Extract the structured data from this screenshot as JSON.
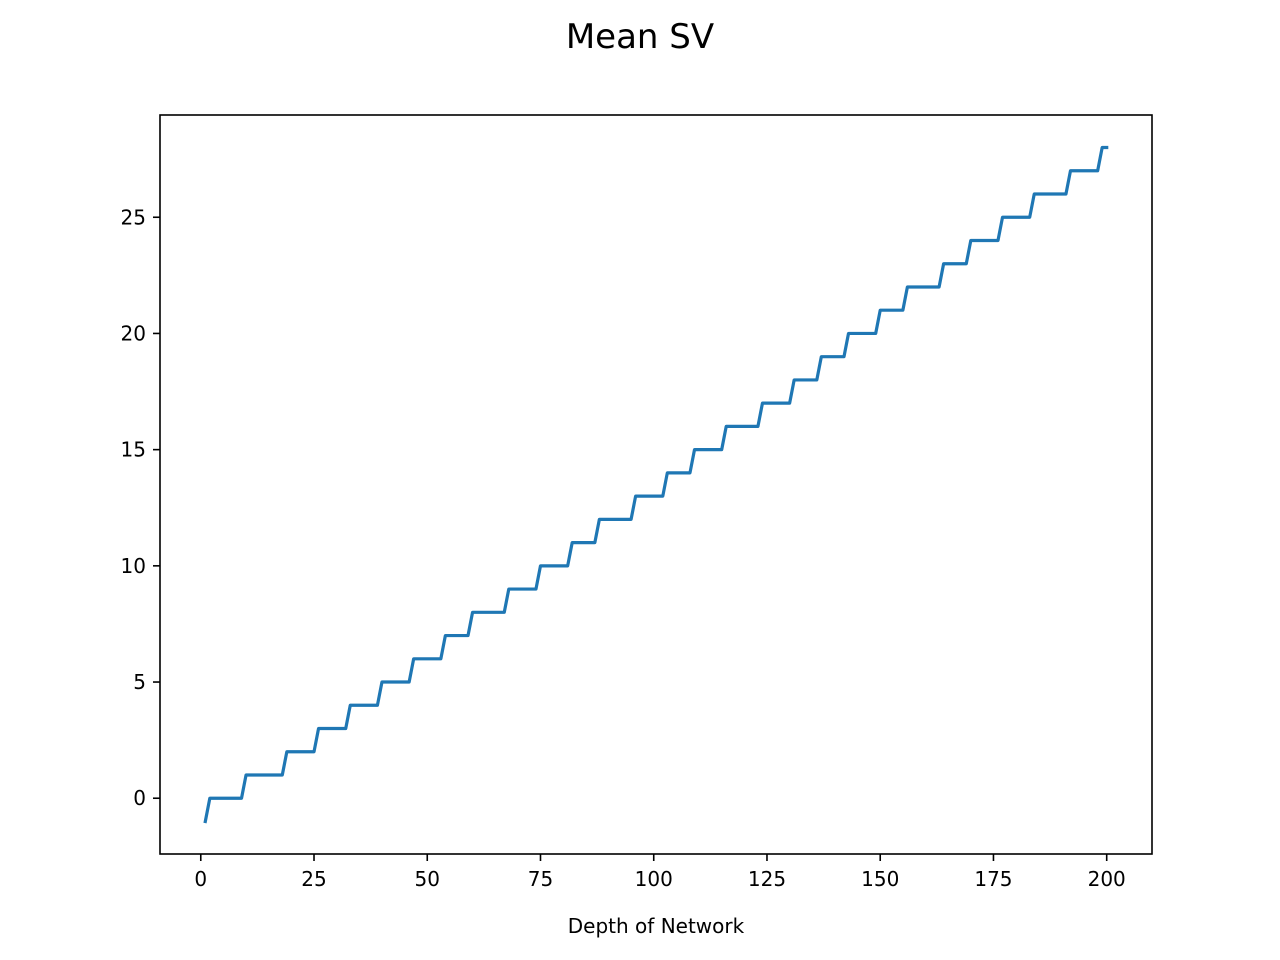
{
  "chart_data": {
    "type": "line",
    "title": "Mean SV",
    "xlabel": "Depth of Network",
    "ylabel": "",
    "xlim": [
      -9,
      210
    ],
    "ylim": [
      -2.4,
      29.4
    ],
    "x_ticks": [
      0,
      25,
      50,
      75,
      100,
      125,
      150,
      175,
      200
    ],
    "y_ticks": [
      0,
      5,
      10,
      15,
      20,
      25
    ],
    "grid": false,
    "legend": "none",
    "series": [
      {
        "color": "#1f77b4",
        "x": [
          1,
          2,
          9,
          10,
          18,
          19,
          25,
          26,
          32,
          33,
          39,
          40,
          46,
          47,
          53,
          54,
          59,
          60,
          67,
          68,
          74,
          75,
          81,
          82,
          87,
          88,
          95,
          96,
          102,
          103,
          108,
          109,
          115,
          116,
          123,
          124,
          130,
          131,
          136,
          137,
          142,
          143,
          149,
          150,
          155,
          156,
          163,
          164,
          169,
          170,
          176,
          177,
          183,
          184,
          191,
          192,
          198,
          199,
          200
        ],
        "y": [
          -1,
          0,
          0,
          1,
          1,
          2,
          2,
          3,
          3,
          4,
          4,
          5,
          5,
          6,
          6,
          7,
          7,
          8,
          8,
          9,
          9,
          10,
          10,
          11,
          11,
          12,
          12,
          13,
          13,
          14,
          14,
          15,
          15,
          16,
          16,
          17,
          17,
          18,
          18,
          19,
          19,
          20,
          20,
          21,
          21,
          22,
          22,
          23,
          23,
          24,
          24,
          25,
          25,
          26,
          26,
          27,
          27,
          28,
          28
        ]
      }
    ]
  }
}
